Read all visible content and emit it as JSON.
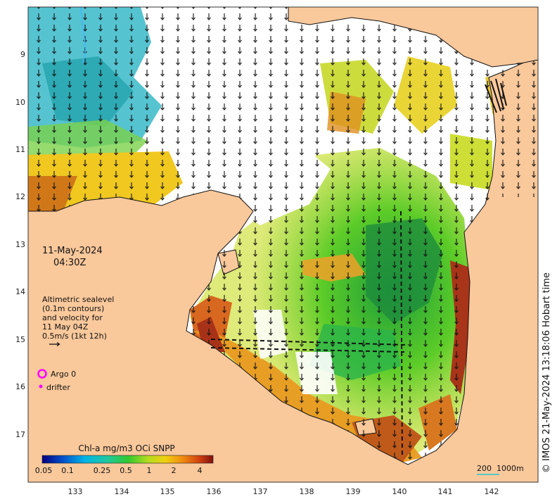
{
  "date_label": "11-May-2024",
  "time_label": "04:30Z",
  "legend_text": {
    "line1": "Altimetric sealevel",
    "line2": "(0.1m contours)",
    "line3": "and velocity for",
    "line4": "11 May 04Z",
    "line5": "0.5m/s (1kt 12h)"
  },
  "markers": {
    "argo_label": "Argo 0",
    "drifter_label": "drifter",
    "argo_color": "#ff00ff",
    "drifter_color": "#ff00ff"
  },
  "colorbar": {
    "title": "Chl-a mg/m3 OCi SNPP",
    "ticks": [
      "0.05",
      "0.1",
      "0.25",
      "0.5",
      "1",
      "2",
      "4"
    ]
  },
  "scale_bar": {
    "label1": "200",
    "label2": "1000m"
  },
  "credit": "© IMOS 21-May-2024 13:18:06 Hobart time",
  "axes": {
    "x_ticks": [
      "133",
      "134",
      "135",
      "136",
      "137",
      "138",
      "139",
      "140",
      "141",
      "142"
    ],
    "y_ticks": [
      "9",
      "10",
      "11",
      "12",
      "13",
      "14",
      "15",
      "16",
      "17"
    ]
  },
  "colors": {
    "land": "#f9c89b",
    "ocean_nodata": "#ffffff",
    "low_chl": "#00a0c8",
    "mid_chl": "#2bc62b",
    "high_chl": "#a0281e"
  }
}
